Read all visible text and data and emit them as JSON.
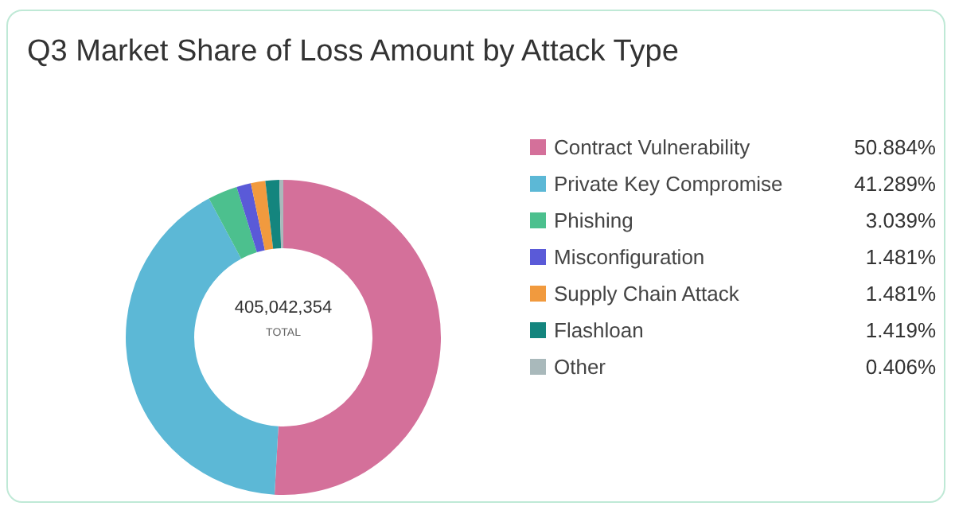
{
  "chart_data": {
    "type": "donut",
    "title": "Q3 Market Share of Loss Amount by Attack Type",
    "categories": [
      "Contract Vulnerability",
      "Private Key Compromise",
      "Phishing",
      "Misconfiguration",
      "Supply Chain Attack",
      "Flashloan",
      "Other"
    ],
    "values": [
      50.884,
      41.289,
      3.039,
      1.481,
      1.481,
      1.419,
      0.406
    ],
    "value_labels": [
      "50.884%",
      "41.289%",
      "3.039%",
      "1.481%",
      "1.481%",
      "1.419%",
      "0.406%"
    ],
    "colors": [
      "#d4709a",
      "#5cb8d6",
      "#4cc08e",
      "#5a5ad8",
      "#f19a3e",
      "#14857e",
      "#a9b9bb"
    ],
    "annotations": [
      "405,042,354",
      "TOTAL"
    ],
    "legend": "right"
  }
}
